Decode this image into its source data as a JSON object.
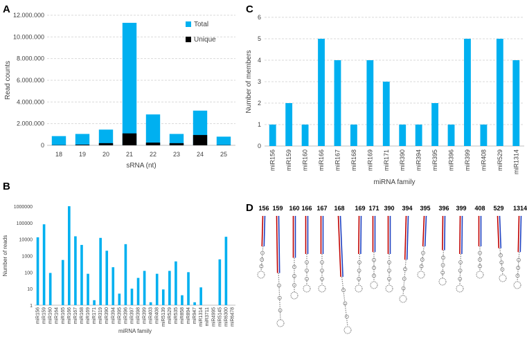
{
  "panel_labels": {
    "a": "A",
    "b": "B",
    "c": "C",
    "d": "D"
  },
  "chart_data": [
    {
      "id": "A",
      "type": "bar",
      "stacked": true,
      "title": "",
      "xlabel": "sRNA (nt)",
      "ylabel": "Read counts",
      "categories": [
        "18",
        "19",
        "20",
        "21",
        "22",
        "23",
        "24",
        "25"
      ],
      "series": [
        {
          "name": "Unique",
          "color": "#000000",
          "values": [
            20000,
            60000,
            200000,
            1100000,
            250000,
            200000,
            950000,
            20000
          ]
        },
        {
          "name": "Total",
          "color": "#00b0f0",
          "values": [
            850000,
            1050000,
            1450000,
            11300000,
            2850000,
            1050000,
            3200000,
            800000
          ]
        }
      ],
      "ylim": [
        0,
        12000000
      ],
      "yticks": [
        "0",
        "2.000.000",
        "4.000.000",
        "6.000.000",
        "8.000.000",
        "10.000.000",
        "12.000.000"
      ],
      "legend": [
        "Total",
        "Unique"
      ],
      "legend_position": "top-right",
      "grid": true
    },
    {
      "id": "B",
      "type": "bar",
      "yscale": "log",
      "title": "",
      "xlabel": "miRNA family",
      "ylabel": "Number of reads",
      "categories": [
        "miR156",
        "miR159",
        "miR160",
        "miR164",
        "miR165",
        "miR166",
        "miR167",
        "miR168",
        "miR169",
        "miR171",
        "miR319",
        "miR390",
        "miR394",
        "miR395",
        "miR396",
        "miR397",
        "miR398",
        "miR399",
        "miR403",
        "miR408",
        "miR5139",
        "miR529",
        "miR535",
        "miR858",
        "miR894",
        "miR947",
        "miR1314",
        "miR3711",
        "miR4995",
        "miR5145",
        "miR6300",
        "miR6478"
      ],
      "values": [
        13000,
        80000,
        90,
        1,
        550,
        1000000,
        15000,
        4500,
        80,
        2,
        12000,
        2000,
        200,
        5,
        5000,
        10,
        45,
        120,
        1.5,
        80,
        9,
        120,
        450,
        4,
        100,
        1.5,
        12,
        1,
        1,
        600,
        14000,
        1
      ],
      "color": "#00b0f0",
      "ylim": [
        1,
        1000000
      ],
      "yticks": [
        "1",
        "10",
        "100",
        "1000",
        "10000",
        "100000",
        "1000000"
      ],
      "grid": false
    },
    {
      "id": "C",
      "type": "bar",
      "title": "",
      "xlabel": "miRNA family",
      "ylabel": "Number of members",
      "categories": [
        "miR156",
        "miR159",
        "miR160",
        "miR166",
        "miR167",
        "miR168",
        "miR169",
        "miR171",
        "miR390",
        "miR394",
        "miR395",
        "miR396",
        "miR399",
        "miR408",
        "miR529",
        "miR1314"
      ],
      "values": [
        1,
        2,
        1,
        5,
        4,
        1,
        4,
        3,
        1,
        1,
        2,
        1,
        5,
        1,
        5,
        4
      ],
      "color": "#00b0f0",
      "ylim": [
        0,
        6
      ],
      "yticks": [
        "0",
        "1",
        "2",
        "3",
        "4",
        "5",
        "6"
      ],
      "grid": true
    },
    {
      "id": "D",
      "type": "diagram",
      "title": "",
      "structures": [
        "156",
        "159",
        "160",
        "166",
        "167",
        "168",
        "169",
        "171",
        "390",
        "394",
        "395",
        "396",
        "399",
        "408",
        "529",
        "1314"
      ]
    }
  ]
}
